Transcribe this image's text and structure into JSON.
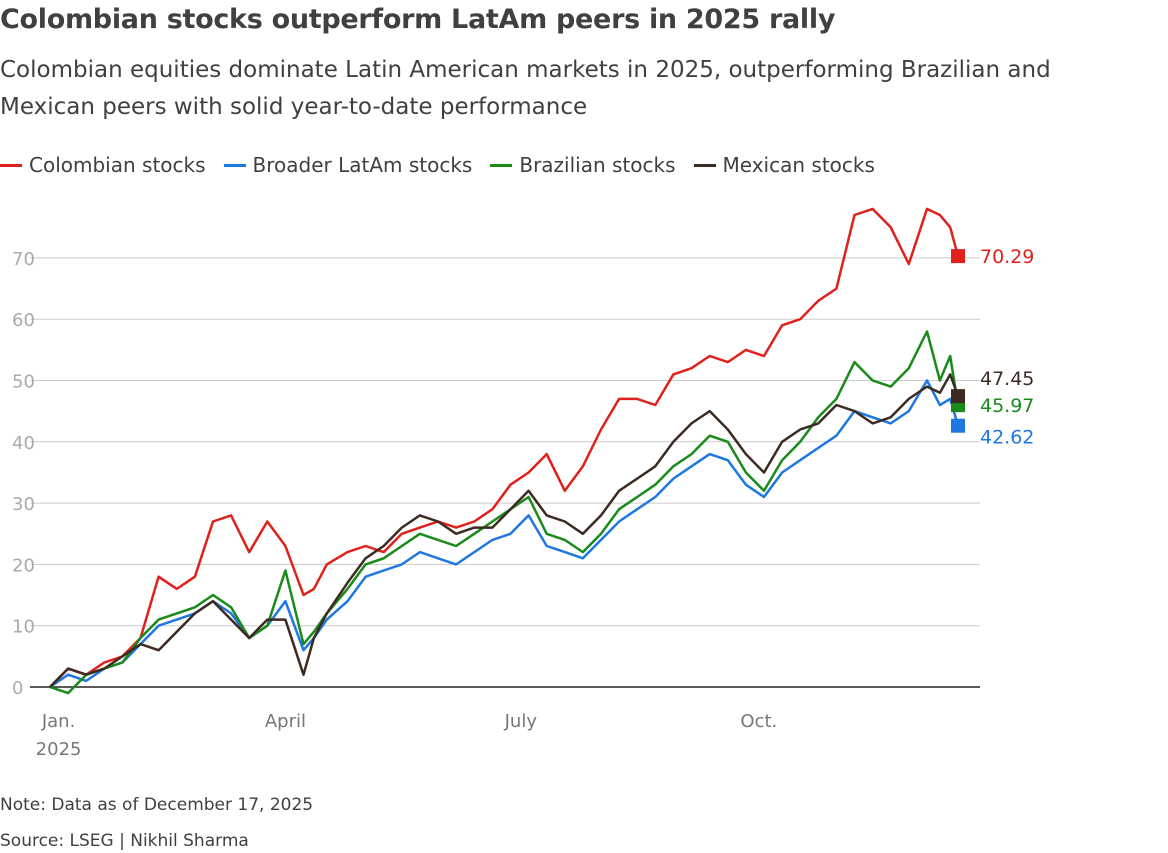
{
  "header": {
    "title": "Colombian stocks outperform LatAm peers in 2025 rally",
    "subtitle": "Colombian equities dominate Latin American markets in 2025, outperforming Brazilian and Mexican peers with solid year-to-date performance"
  },
  "footer": {
    "note": "Note: Data as of December 17, 2025",
    "source": "Source: LSEG | Nikhil Sharma"
  },
  "chart_data": {
    "type": "line",
    "title": "Colombian stocks outperform LatAm peers in 2025 rally",
    "xlabel": "",
    "ylabel": "",
    "ylim": [
      0,
      80
    ],
    "xlim": [
      "2024-12-31",
      "2025-12-17"
    ],
    "grid": true,
    "legend_placement": "top-left",
    "y_ticks": [
      0,
      10,
      20,
      30,
      40,
      50,
      60,
      70
    ],
    "x_ticks": [
      {
        "date": "2025-01-01",
        "label": "Jan.",
        "sublabel": "2025"
      },
      {
        "date": "2025-04-01",
        "label": "April",
        "sublabel": ""
      },
      {
        "date": "2025-07-01",
        "label": "July",
        "sublabel": ""
      },
      {
        "date": "2025-10-01",
        "label": "Oct.",
        "sublabel": ""
      }
    ],
    "series": [
      {
        "name": "Colombian stocks",
        "color": "#e0201b",
        "end_label": "70.29",
        "end_value": 70.29,
        "points": [
          [
            "2024-12-31",
            0
          ],
          [
            "2025-01-07",
            3
          ],
          [
            "2025-01-14",
            2
          ],
          [
            "2025-01-21",
            4
          ],
          [
            "2025-01-28",
            5
          ],
          [
            "2025-02-04",
            8
          ],
          [
            "2025-02-11",
            18
          ],
          [
            "2025-02-18",
            16
          ],
          [
            "2025-02-25",
            18
          ],
          [
            "2025-03-04",
            27
          ],
          [
            "2025-03-11",
            28
          ],
          [
            "2025-03-18",
            22
          ],
          [
            "2025-03-25",
            27
          ],
          [
            "2025-04-01",
            23
          ],
          [
            "2025-04-08",
            15
          ],
          [
            "2025-04-12",
            16
          ],
          [
            "2025-04-17",
            20
          ],
          [
            "2025-04-25",
            22
          ],
          [
            "2025-05-02",
            23
          ],
          [
            "2025-05-09",
            22
          ],
          [
            "2025-05-16",
            25
          ],
          [
            "2025-05-23",
            26
          ],
          [
            "2025-05-30",
            27
          ],
          [
            "2025-06-06",
            26
          ],
          [
            "2025-06-13",
            27
          ],
          [
            "2025-06-20",
            29
          ],
          [
            "2025-06-27",
            33
          ],
          [
            "2025-07-04",
            35
          ],
          [
            "2025-07-11",
            38
          ],
          [
            "2025-07-18",
            32
          ],
          [
            "2025-07-25",
            36
          ],
          [
            "2025-08-01",
            42
          ],
          [
            "2025-08-08",
            47
          ],
          [
            "2025-08-15",
            47
          ],
          [
            "2025-08-22",
            46
          ],
          [
            "2025-08-29",
            51
          ],
          [
            "2025-09-05",
            52
          ],
          [
            "2025-09-12",
            54
          ],
          [
            "2025-09-19",
            53
          ],
          [
            "2025-09-26",
            55
          ],
          [
            "2025-10-03",
            54
          ],
          [
            "2025-10-10",
            59
          ],
          [
            "2025-10-17",
            60
          ],
          [
            "2025-10-24",
            63
          ],
          [
            "2025-10-31",
            65
          ],
          [
            "2025-11-07",
            77
          ],
          [
            "2025-11-14",
            78
          ],
          [
            "2025-11-21",
            75
          ],
          [
            "2025-11-28",
            69
          ],
          [
            "2025-12-05",
            78
          ],
          [
            "2025-12-10",
            77
          ],
          [
            "2025-12-14",
            75
          ],
          [
            "2025-12-17",
            70.29
          ]
        ]
      },
      {
        "name": "Broader LatAm stocks",
        "color": "#1f77e0",
        "end_label": "42.62",
        "end_value": 42.62,
        "points": [
          [
            "2024-12-31",
            0
          ],
          [
            "2025-01-07",
            2
          ],
          [
            "2025-01-14",
            1
          ],
          [
            "2025-01-21",
            3
          ],
          [
            "2025-01-28",
            4
          ],
          [
            "2025-02-04",
            7
          ],
          [
            "2025-02-11",
            10
          ],
          [
            "2025-02-18",
            11
          ],
          [
            "2025-02-25",
            12
          ],
          [
            "2025-03-04",
            14
          ],
          [
            "2025-03-11",
            12
          ],
          [
            "2025-03-18",
            8
          ],
          [
            "2025-03-25",
            10
          ],
          [
            "2025-04-01",
            14
          ],
          [
            "2025-04-08",
            6
          ],
          [
            "2025-04-12",
            8
          ],
          [
            "2025-04-17",
            11
          ],
          [
            "2025-04-25",
            14
          ],
          [
            "2025-05-02",
            18
          ],
          [
            "2025-05-09",
            19
          ],
          [
            "2025-05-16",
            20
          ],
          [
            "2025-05-23",
            22
          ],
          [
            "2025-05-30",
            21
          ],
          [
            "2025-06-06",
            20
          ],
          [
            "2025-06-13",
            22
          ],
          [
            "2025-06-20",
            24
          ],
          [
            "2025-06-27",
            25
          ],
          [
            "2025-07-04",
            28
          ],
          [
            "2025-07-11",
            23
          ],
          [
            "2025-07-18",
            22
          ],
          [
            "2025-07-25",
            21
          ],
          [
            "2025-08-01",
            24
          ],
          [
            "2025-08-08",
            27
          ],
          [
            "2025-08-15",
            29
          ],
          [
            "2025-08-22",
            31
          ],
          [
            "2025-08-29",
            34
          ],
          [
            "2025-09-05",
            36
          ],
          [
            "2025-09-12",
            38
          ],
          [
            "2025-09-19",
            37
          ],
          [
            "2025-09-26",
            33
          ],
          [
            "2025-10-03",
            31
          ],
          [
            "2025-10-10",
            35
          ],
          [
            "2025-10-17",
            37
          ],
          [
            "2025-10-24",
            39
          ],
          [
            "2025-10-31",
            41
          ],
          [
            "2025-11-07",
            45
          ],
          [
            "2025-11-14",
            44
          ],
          [
            "2025-11-21",
            43
          ],
          [
            "2025-11-28",
            45
          ],
          [
            "2025-12-05",
            50
          ],
          [
            "2025-12-10",
            46
          ],
          [
            "2025-12-14",
            47
          ],
          [
            "2025-12-17",
            42.62
          ]
        ]
      },
      {
        "name": "Brazilian stocks",
        "color": "#1a8a1a",
        "end_label": "45.97",
        "end_value": 45.97,
        "points": [
          [
            "2024-12-31",
            0
          ],
          [
            "2025-01-07",
            -1
          ],
          [
            "2025-01-14",
            2
          ],
          [
            "2025-01-21",
            3
          ],
          [
            "2025-01-28",
            4
          ],
          [
            "2025-02-04",
            8
          ],
          [
            "2025-02-11",
            11
          ],
          [
            "2025-02-18",
            12
          ],
          [
            "2025-02-25",
            13
          ],
          [
            "2025-03-04",
            15
          ],
          [
            "2025-03-11",
            13
          ],
          [
            "2025-03-18",
            8
          ],
          [
            "2025-03-25",
            10
          ],
          [
            "2025-04-01",
            19
          ],
          [
            "2025-04-08",
            7
          ],
          [
            "2025-04-12",
            9
          ],
          [
            "2025-04-17",
            12
          ],
          [
            "2025-04-25",
            16
          ],
          [
            "2025-05-02",
            20
          ],
          [
            "2025-05-09",
            21
          ],
          [
            "2025-05-16",
            23
          ],
          [
            "2025-05-23",
            25
          ],
          [
            "2025-05-30",
            24
          ],
          [
            "2025-06-06",
            23
          ],
          [
            "2025-06-13",
            25
          ],
          [
            "2025-06-20",
            27
          ],
          [
            "2025-06-27",
            29
          ],
          [
            "2025-07-04",
            31
          ],
          [
            "2025-07-11",
            25
          ],
          [
            "2025-07-18",
            24
          ],
          [
            "2025-07-25",
            22
          ],
          [
            "2025-08-01",
            25
          ],
          [
            "2025-08-08",
            29
          ],
          [
            "2025-08-15",
            31
          ],
          [
            "2025-08-22",
            33
          ],
          [
            "2025-08-29",
            36
          ],
          [
            "2025-09-05",
            38
          ],
          [
            "2025-09-12",
            41
          ],
          [
            "2025-09-19",
            40
          ],
          [
            "2025-09-26",
            35
          ],
          [
            "2025-10-03",
            32
          ],
          [
            "2025-10-10",
            37
          ],
          [
            "2025-10-17",
            40
          ],
          [
            "2025-10-24",
            44
          ],
          [
            "2025-10-31",
            47
          ],
          [
            "2025-11-07",
            53
          ],
          [
            "2025-11-14",
            50
          ],
          [
            "2025-11-21",
            49
          ],
          [
            "2025-11-28",
            52
          ],
          [
            "2025-12-05",
            58
          ],
          [
            "2025-12-10",
            50
          ],
          [
            "2025-12-14",
            54
          ],
          [
            "2025-12-17",
            45.97
          ]
        ]
      },
      {
        "name": "Mexican stocks",
        "color": "#3d2b22",
        "end_label": "47.45",
        "end_value": 47.45,
        "points": [
          [
            "2024-12-31",
            0
          ],
          [
            "2025-01-07",
            3
          ],
          [
            "2025-01-14",
            2
          ],
          [
            "2025-01-21",
            3
          ],
          [
            "2025-01-28",
            5
          ],
          [
            "2025-02-04",
            7
          ],
          [
            "2025-02-11",
            6
          ],
          [
            "2025-02-18",
            9
          ],
          [
            "2025-02-25",
            12
          ],
          [
            "2025-03-04",
            14
          ],
          [
            "2025-03-11",
            11
          ],
          [
            "2025-03-18",
            8
          ],
          [
            "2025-03-25",
            11
          ],
          [
            "2025-04-01",
            11
          ],
          [
            "2025-04-08",
            2
          ],
          [
            "2025-04-12",
            8
          ],
          [
            "2025-04-17",
            12
          ],
          [
            "2025-04-25",
            17
          ],
          [
            "2025-05-02",
            21
          ],
          [
            "2025-05-09",
            23
          ],
          [
            "2025-05-16",
            26
          ],
          [
            "2025-05-23",
            28
          ],
          [
            "2025-05-30",
            27
          ],
          [
            "2025-06-06",
            25
          ],
          [
            "2025-06-13",
            26
          ],
          [
            "2025-06-20",
            26
          ],
          [
            "2025-06-27",
            29
          ],
          [
            "2025-07-04",
            32
          ],
          [
            "2025-07-11",
            28
          ],
          [
            "2025-07-18",
            27
          ],
          [
            "2025-07-25",
            25
          ],
          [
            "2025-08-01",
            28
          ],
          [
            "2025-08-08",
            32
          ],
          [
            "2025-08-15",
            34
          ],
          [
            "2025-08-22",
            36
          ],
          [
            "2025-08-29",
            40
          ],
          [
            "2025-09-05",
            43
          ],
          [
            "2025-09-12",
            45
          ],
          [
            "2025-09-19",
            42
          ],
          [
            "2025-09-26",
            38
          ],
          [
            "2025-10-03",
            35
          ],
          [
            "2025-10-10",
            40
          ],
          [
            "2025-10-17",
            42
          ],
          [
            "2025-10-24",
            43
          ],
          [
            "2025-10-31",
            46
          ],
          [
            "2025-11-07",
            45
          ],
          [
            "2025-11-14",
            43
          ],
          [
            "2025-11-21",
            44
          ],
          [
            "2025-11-28",
            47
          ],
          [
            "2025-12-05",
            49
          ],
          [
            "2025-12-10",
            48
          ],
          [
            "2025-12-14",
            51
          ],
          [
            "2025-12-17",
            47.45
          ]
        ]
      }
    ]
  }
}
